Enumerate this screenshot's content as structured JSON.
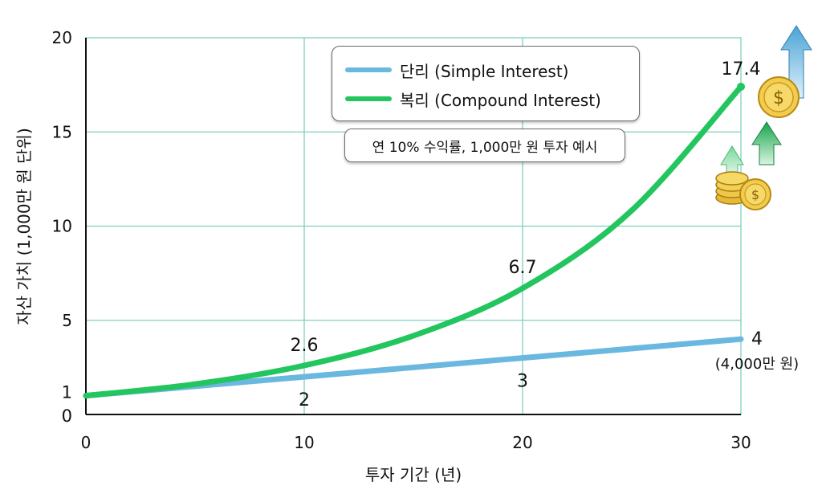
{
  "chart_data": {
    "type": "line",
    "x": [
      0,
      10,
      20,
      30
    ],
    "xlabel": "투자 기간 (년)",
    "ylabel": "자산 가치 (1,000만 원 단위)",
    "xlim": [
      0,
      30
    ],
    "ylim": [
      0,
      20
    ],
    "x_ticks": [
      "0",
      "10",
      "20",
      "30"
    ],
    "y_ticks": [
      "0",
      "1",
      "5",
      "10",
      "15",
      "20"
    ],
    "grid": true,
    "legend_position": "top-center",
    "series": [
      {
        "name": "단리 (Simple Interest)",
        "color": "#6ab7e0",
        "x": [
          0,
          10,
          20,
          30
        ],
        "values": [
          1,
          2,
          3,
          4
        ]
      },
      {
        "name": "복리 (Compound Interest)",
        "color": "#22c55e",
        "x": [
          0,
          5,
          10,
          15,
          20,
          25,
          30
        ],
        "values": [
          1,
          1.61,
          2.6,
          4.18,
          6.7,
          10.83,
          17.4
        ]
      }
    ],
    "annotations": [
      {
        "text": "2.6",
        "series": "compound"
      },
      {
        "text": "6.7",
        "series": "compound"
      },
      {
        "text": "17.4",
        "series": "compound"
      },
      {
        "text": "2",
        "series": "simple"
      },
      {
        "text": "3",
        "series": "simple"
      },
      {
        "text": "4",
        "series": "simple"
      },
      {
        "text": "(4,000만 원)",
        "series": "simple"
      }
    ],
    "note": "연 10% 수익률, 1,000만 원 투자 예시"
  },
  "icons": [
    "coin-icon",
    "coin-stack-icon",
    "up-arrow-icon"
  ],
  "colors": {
    "grid": "#7fcfc0",
    "axis": "#111111",
    "coin": "#e8c040",
    "arrow_blue": "#6ab7e0",
    "arrow_green": "#22c55e"
  }
}
